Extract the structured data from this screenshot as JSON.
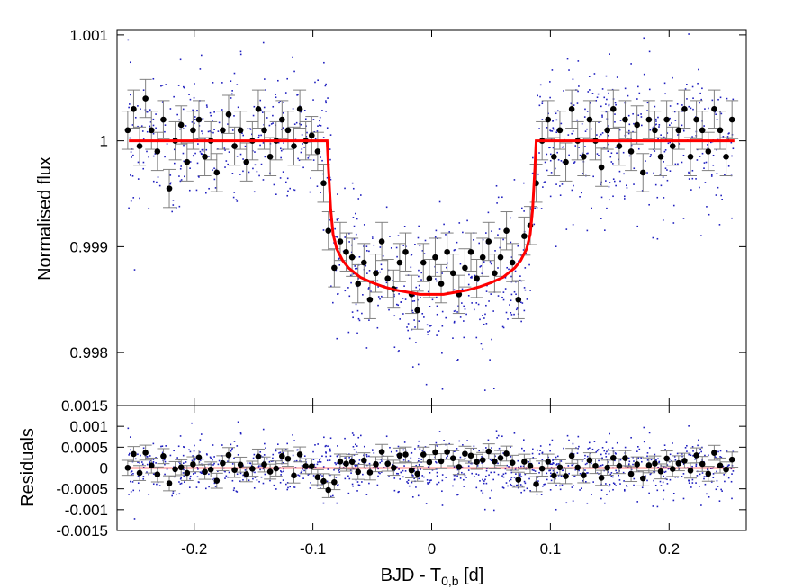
{
  "chart_data": [
    {
      "panel": "top",
      "type": "scatter",
      "ylabel": "Normalised flux",
      "xlim": [
        -0.265,
        0.265
      ],
      "ylim": [
        0.9975,
        1.00105
      ],
      "yticks": [
        0.998,
        0.999,
        1,
        1.001
      ],
      "ytick_labels": [
        "0.998",
        "0.999",
        "1",
        "1.001"
      ],
      "colors": {
        "raw": "#1f1fbf",
        "binned": "#000000",
        "errorbar": "#808080",
        "model": "#ff0000"
      },
      "series": [
        {
          "name": "",
          "style": "unbinned points (blue dots)",
          "count_approx": 1100
        },
        {
          "name": "",
          "style": "binned points with error bars",
          "error": 0.00018,
          "x": [
            -0.256,
            -0.251,
            -0.246,
            -0.241,
            -0.236,
            -0.231,
            -0.226,
            -0.221,
            -0.216,
            -0.211,
            -0.206,
            -0.201,
            -0.196,
            -0.191,
            -0.186,
            -0.181,
            -0.176,
            -0.171,
            -0.166,
            -0.161,
            -0.156,
            -0.151,
            -0.146,
            -0.141,
            -0.136,
            -0.131,
            -0.126,
            -0.121,
            -0.116,
            -0.111,
            -0.106,
            -0.101,
            -0.096,
            -0.091,
            -0.087,
            -0.082,
            -0.077,
            -0.072,
            -0.067,
            -0.062,
            -0.057,
            -0.052,
            -0.047,
            -0.042,
            -0.037,
            -0.032,
            -0.027,
            -0.022,
            -0.017,
            -0.012,
            -0.007,
            -0.002,
            0.003,
            0.008,
            0.013,
            0.018,
            0.023,
            0.028,
            0.033,
            0.038,
            0.043,
            0.048,
            0.053,
            0.058,
            0.063,
            0.068,
            0.073,
            0.078,
            0.083,
            0.088,
            0.093,
            0.098,
            0.103,
            0.108,
            0.113,
            0.118,
            0.123,
            0.128,
            0.133,
            0.138,
            0.143,
            0.148,
            0.153,
            0.158,
            0.163,
            0.168,
            0.173,
            0.178,
            0.183,
            0.188,
            0.193,
            0.198,
            0.203,
            0.208,
            0.213,
            0.218,
            0.223,
            0.228,
            0.233,
            0.238,
            0.243,
            0.248,
            0.253
          ],
          "y": [
            1.0001,
            1.0003,
            0.99995,
            1.0004,
            1.0001,
            0.9999,
            1.0002,
            0.99955,
            1.0,
            1.00015,
            0.9998,
            1.0001,
            1.0002,
            0.99985,
            1.0,
            0.9997,
            1.0001,
            1.00025,
            0.99995,
            1.0001,
            0.9998,
            1.0,
            1.0003,
            1.0001,
            0.99985,
            1.0,
            1.0002,
            1.0001,
            0.99995,
            1.0003,
            1.0,
            1.00005,
            0.9999,
            0.9996,
            0.99915,
            0.9988,
            0.99905,
            0.99895,
            0.9989,
            0.99865,
            0.99885,
            0.9985,
            0.99875,
            0.99905,
            0.9987,
            0.9986,
            0.99885,
            0.99895,
            0.99855,
            0.9984,
            0.99885,
            0.9987,
            0.9989,
            0.99865,
            0.99895,
            0.99875,
            0.99855,
            0.9988,
            0.99895,
            0.9987,
            0.9989,
            0.99905,
            0.99875,
            0.9989,
            0.99915,
            0.99885,
            0.9985,
            0.9991,
            0.9992,
            0.9996,
            1.0,
            1.0002,
            0.99985,
            1.0001,
            0.9998,
            1.0003,
            1.0,
            0.99985,
            1.0002,
            1.0,
            0.99975,
            1.0001,
            1.0003,
            0.99995,
            1.0002,
            0.9999,
            1.00015,
            0.9997,
            1.0002,
            1.0001,
            0.99985,
            1.0002,
            0.99995,
            1.0001,
            1.0003,
            0.99985,
            1.0002,
            1.0001,
            0.9999,
            1.0003,
            1.0001,
            0.99985,
            1.0002
          ]
        },
        {
          "name": "",
          "style": "transit model (red line)",
          "x": [
            -0.255,
            -0.1,
            -0.088,
            -0.087,
            -0.085,
            -0.083,
            -0.08,
            -0.075,
            -0.07,
            -0.06,
            -0.05,
            -0.04,
            -0.03,
            -0.02,
            -0.01,
            0.0,
            0.01,
            0.02,
            0.03,
            0.04,
            0.05,
            0.06,
            0.07,
            0.075,
            0.08,
            0.083,
            0.085,
            0.087,
            0.088,
            0.1,
            0.255
          ],
          "y": [
            1.0,
            1.0,
            1.0,
            0.99975,
            0.99935,
            0.99912,
            0.99898,
            0.99887,
            0.9988,
            0.99871,
            0.99866,
            0.99862,
            0.99859,
            0.99857,
            0.99855,
            0.99855,
            0.99855,
            0.99857,
            0.99859,
            0.99862,
            0.99866,
            0.99871,
            0.9988,
            0.99887,
            0.99898,
            0.99912,
            0.99935,
            0.99975,
            1.0,
            1.0,
            1.0
          ]
        }
      ]
    },
    {
      "panel": "bottom",
      "type": "scatter",
      "xlabel_main": "BJD - T",
      "xlabel_sub": "0,b",
      "xlabel_unit": " [d]",
      "ylabel": "Residuals",
      "xlim": [
        -0.265,
        0.265
      ],
      "ylim": [
        -0.0015,
        0.0015
      ],
      "xticks": [
        -0.2,
        -0.1,
        0,
        0.1,
        0.2
      ],
      "xtick_labels": [
        "-0.2",
        "-0.1",
        "0",
        "0.1",
        "0.2"
      ],
      "yticks": [
        -0.0015,
        -0.001,
        -0.0005,
        0,
        0.0005,
        0.001,
        0.0015
      ],
      "ytick_labels": [
        "-0.0015",
        "-0.001",
        "-0.0005",
        "0",
        "0.0005",
        "0.001",
        "0.0015"
      ],
      "series": [
        {
          "name": "",
          "style": "unbinned residuals (blue dots)",
          "count_approx": 1100
        },
        {
          "name": "",
          "style": "binned residuals with error bars",
          "error": 0.00018,
          "spread": 0.0002
        },
        {
          "name": "",
          "style": "zero line (red)",
          "y": 0
        }
      ]
    }
  ]
}
